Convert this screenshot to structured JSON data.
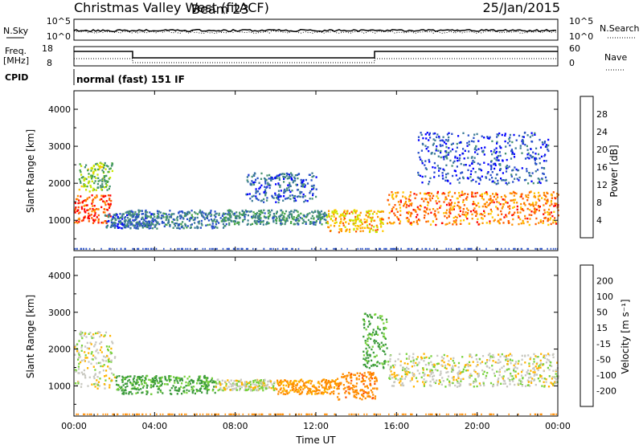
{
  "header": {
    "title": "Christmas Valley West (fitACF)",
    "beam": "Beam 23",
    "date": "25/Jan/2015"
  },
  "status_panels": {
    "nsky_label": "N.Sky",
    "nsearch_label": "N.Search",
    "noise_ticks": [
      "10^5",
      "10^0"
    ],
    "freq_label_1": "Freq.",
    "freq_label_2": "[MHz]",
    "freq_ticks": [
      "18",
      "8"
    ],
    "nave_label": "Nave",
    "nave_ticks": [
      "60",
      "0"
    ],
    "cpid_label": "CPID",
    "cpid_value": "normal (fast) 151 IF"
  },
  "chart_data": [
    {
      "type": "heatmap",
      "name": "Power",
      "xlabel": "Time UT",
      "ylabel": "Slant Range [km]",
      "xlim_hours": [
        0,
        24
      ],
      "ylim_km": [
        180,
        4500
      ],
      "x_ticks": [
        "00:00",
        "04:00",
        "08:00",
        "12:00",
        "16:00",
        "20:00",
        "00:00"
      ],
      "y_ticks": [
        1000,
        2000,
        3000,
        4000
      ],
      "colorbar": {
        "label": "Power [dB]",
        "ticks": [
          4,
          8,
          12,
          16,
          20,
          24,
          28
        ],
        "colors": [
          "#0000ff",
          "#2850c8",
          "#3c7b96",
          "#469173",
          "#46a546",
          "#c8e600",
          "#ffc800",
          "#ff9100",
          "#ff5a00",
          "#ff0000"
        ]
      },
      "regions": [
        {
          "t0": 0.0,
          "t1": 1.8,
          "r0": 950,
          "r1": 1700,
          "level": 26
        },
        {
          "t0": 0.2,
          "t1": 1.9,
          "r0": 1800,
          "r1": 2600,
          "level": 14
        },
        {
          "t0": 1.5,
          "t1": 4.0,
          "r0": 800,
          "r1": 1200,
          "level": 6
        },
        {
          "t0": 2.5,
          "t1": 7.5,
          "r0": 800,
          "r1": 1300,
          "level": 8
        },
        {
          "t0": 7.5,
          "t1": 12.5,
          "r0": 900,
          "r1": 1300,
          "level": 10
        },
        {
          "t0": 12.5,
          "t1": 15.3,
          "r0": 700,
          "r1": 1300,
          "level": 20
        },
        {
          "t0": 15.5,
          "t1": 24.0,
          "r0": 900,
          "r1": 1800,
          "level": 24
        },
        {
          "t0": 8.5,
          "t1": 12.0,
          "r0": 1500,
          "r1": 2300,
          "level": 6
        },
        {
          "t0": 17.0,
          "t1": 23.5,
          "r0": 2000,
          "r1": 3400,
          "level": 5
        }
      ]
    },
    {
      "type": "heatmap",
      "name": "Velocity",
      "xlabel": "Time UT",
      "ylabel": "Slant Range [km]",
      "xlim_hours": [
        0,
        24
      ],
      "ylim_km": [
        180,
        4500
      ],
      "x_ticks": [
        "00:00",
        "04:00",
        "08:00",
        "12:00",
        "16:00",
        "20:00",
        "00:00"
      ],
      "y_ticks": [
        1000,
        2000,
        3000,
        4000
      ],
      "colorbar": {
        "label": "Velocity [m s⁻¹]",
        "ticks": [
          200,
          100,
          50,
          15,
          -15,
          -50,
          -100,
          -200
        ],
        "colors": [
          "#2040c0",
          "#3c5fa8",
          "#3c9b3c",
          "#78d23c",
          "#c8c8c0",
          "#c8c8c0",
          "#ffb400",
          "#ff8c00",
          "#ff5000",
          "#e60000"
        ]
      },
      "regions": [
        {
          "t0": 0.0,
          "t1": 2.0,
          "r0": 950,
          "r1": 2500,
          "velocity": 0
        },
        {
          "t0": 2.0,
          "t1": 7.0,
          "r0": 800,
          "r1": 1300,
          "velocity": 60
        },
        {
          "t0": 7.0,
          "t1": 10.0,
          "r0": 900,
          "r1": 1200,
          "velocity": 0
        },
        {
          "t0": 10.0,
          "t1": 13.0,
          "r0": 800,
          "r1": 1200,
          "velocity": -60
        },
        {
          "t0": 13.0,
          "t1": 15.0,
          "r0": 650,
          "r1": 1400,
          "velocity": -80
        },
        {
          "t0": 14.3,
          "t1": 15.5,
          "r0": 1500,
          "r1": 3000,
          "velocity": 60
        },
        {
          "t0": 15.5,
          "t1": 24.0,
          "r0": 1000,
          "r1": 1900,
          "velocity": 0
        }
      ]
    }
  ]
}
